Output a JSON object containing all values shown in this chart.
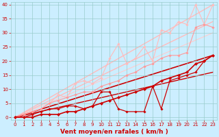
{
  "xlabel": "Vent moyen/en rafales ( km/h )",
  "xlim": [
    -0.5,
    23.5
  ],
  "ylim": [
    -1,
    41
  ],
  "xticks": [
    0,
    1,
    2,
    3,
    4,
    5,
    6,
    7,
    8,
    9,
    10,
    11,
    12,
    13,
    14,
    15,
    16,
    17,
    18,
    19,
    20,
    21,
    22,
    23
  ],
  "yticks": [
    0,
    5,
    10,
    15,
    20,
    25,
    30,
    35,
    40
  ],
  "bg_color": "#cceeff",
  "grid_color": "#99cccc",
  "series": [
    {
      "x": [
        0,
        1,
        2,
        3,
        4,
        5,
        6,
        7,
        8,
        9,
        10,
        11,
        12,
        13,
        14,
        15,
        16,
        17,
        18,
        19,
        20,
        21,
        22,
        23
      ],
      "y": [
        0,
        1,
        2,
        3,
        5,
        8,
        7,
        12,
        13,
        12,
        14,
        21,
        26,
        19,
        21,
        25,
        20,
        31,
        30,
        34,
        33,
        40,
        33,
        40
      ],
      "color": "#ffbbbb",
      "lw": 0.8,
      "marker": "D",
      "ms": 1.8,
      "zorder": 2
    },
    {
      "x": [
        0,
        1,
        2,
        3,
        4,
        5,
        6,
        7,
        8,
        9,
        10,
        11,
        12,
        13,
        14,
        15,
        16,
        17,
        18,
        19,
        20,
        21,
        22,
        23
      ],
      "y": [
        0,
        1,
        2,
        3,
        5,
        6,
        7,
        8,
        9,
        9,
        11,
        12,
        13,
        15,
        16,
        18,
        19,
        21,
        22,
        22,
        23,
        32,
        33,
        32
      ],
      "color": "#ff9999",
      "lw": 0.8,
      "marker": "D",
      "ms": 1.8,
      "zorder": 3
    },
    {
      "x": [
        0,
        23
      ],
      "y": [
        0,
        40
      ],
      "color": "#ffbbbb",
      "lw": 1.0,
      "marker": null,
      "ms": 0,
      "zorder": 1
    },
    {
      "x": [
        0,
        23
      ],
      "y": [
        0,
        34
      ],
      "color": "#ffbbbb",
      "lw": 1.0,
      "marker": null,
      "ms": 0,
      "zorder": 1
    },
    {
      "x": [
        0,
        23
      ],
      "y": [
        0,
        30
      ],
      "color": "#ffcccc",
      "lw": 0.8,
      "marker": null,
      "ms": 0,
      "zorder": 1
    },
    {
      "x": [
        0,
        23
      ],
      "y": [
        0,
        22
      ],
      "color": "#cc0000",
      "lw": 1.2,
      "marker": null,
      "ms": 0,
      "zorder": 1
    },
    {
      "x": [
        0,
        23
      ],
      "y": [
        0,
        16
      ],
      "color": "#cc0000",
      "lw": 1.0,
      "marker": null,
      "ms": 0,
      "zorder": 1
    },
    {
      "x": [
        0,
        1,
        2,
        3,
        4,
        5,
        6,
        7,
        8,
        9,
        10,
        11,
        12,
        13,
        14,
        15,
        16,
        17,
        18,
        19,
        20,
        21,
        22,
        23
      ],
      "y": [
        0,
        0,
        1,
        2,
        3,
        3,
        4,
        4,
        3,
        4,
        9,
        9,
        3,
        2,
        2,
        2,
        11,
        3,
        13,
        14,
        15,
        16,
        20,
        22
      ],
      "color": "#cc0000",
      "lw": 0.9,
      "marker": "D",
      "ms": 1.8,
      "zorder": 4
    },
    {
      "x": [
        0,
        1,
        2,
        3,
        4,
        5,
        6,
        7,
        8,
        9,
        10,
        11,
        12,
        13,
        14,
        15,
        16,
        17,
        18,
        19,
        20,
        21,
        22,
        23
      ],
      "y": [
        0,
        0,
        0,
        1,
        1,
        1,
        2,
        2,
        3,
        4,
        5,
        6,
        7,
        8,
        9,
        10,
        11,
        13,
        14,
        15,
        16,
        19,
        20,
        22
      ],
      "color": "#cc0000",
      "lw": 1.2,
      "marker": "D",
      "ms": 2.2,
      "zorder": 5
    }
  ],
  "tick_color": "#cc0000",
  "tick_fontsize": 5.0,
  "xlabel_fontsize": 6.5,
  "xlabel_color": "#cc0000",
  "xlabel_bold": true
}
